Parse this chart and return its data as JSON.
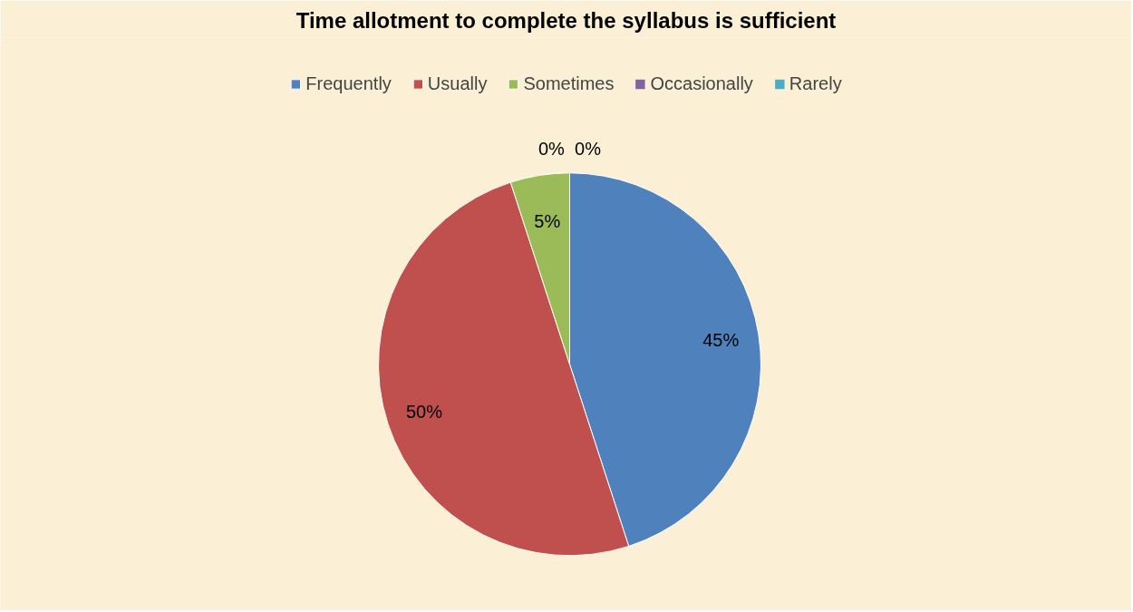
{
  "chart_data": {
    "type": "pie",
    "title": "Time allotment to complete the syllabus is sufficient",
    "categories": [
      "Frequently",
      "Usually",
      "Sometimes",
      "Occasionally",
      "Rarely"
    ],
    "values": [
      45,
      50,
      5,
      0,
      0
    ],
    "value_labels": [
      "45%",
      "50%",
      "5%",
      "0%",
      "0%"
    ],
    "colors": [
      "#4f81bd",
      "#c0504d",
      "#9bbb59",
      "#8064a2",
      "#4bacc6"
    ],
    "legend": "top"
  }
}
